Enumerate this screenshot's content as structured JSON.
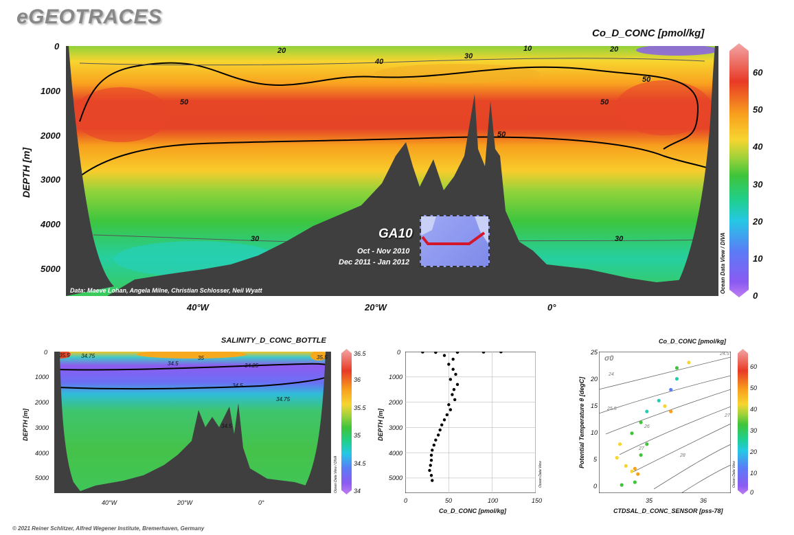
{
  "header": {
    "logo": "eGEOTRACES"
  },
  "footer": {
    "copyright": "© 2021 Reiner Schlitzer, Alfred Wegener Institute, Bremerhaven, Germany"
  },
  "main_section": {
    "title": "Co_D_CONC [pmol/kg]",
    "ylabel": "DEPTH [m]",
    "y_ticks": [
      "0",
      "1000",
      "2000",
      "3000",
      "4000",
      "5000"
    ],
    "x_ticks": [
      "40°W",
      "20°W",
      "0°"
    ],
    "colorbar_ticks": [
      "60",
      "50",
      "40",
      "30",
      "20",
      "10",
      "0"
    ],
    "contour_labels": [
      "20",
      "10",
      "40",
      "30",
      "50",
      "50",
      "50",
      "50",
      "30",
      "30"
    ],
    "credit": "Data: Maeve Lohan, Angela Milne, Christian Schlosser, Neil Wyatt",
    "side_label": "Ocean Data View / DIVA",
    "cruise": {
      "name": "GA10",
      "dates_1": "Oct - Nov 2010",
      "dates_2": "Dec 2011 - Jan 2012"
    }
  },
  "salinity_section": {
    "title": "SALINITY_D_CONC_BOTTLE",
    "ylabel": "DEPTH [m]",
    "y_ticks": [
      "0",
      "1000",
      "2000",
      "3000",
      "4000",
      "5000"
    ],
    "x_ticks": [
      "40°W",
      "20°W",
      "0°"
    ],
    "colorbar_ticks": [
      "36.5",
      "36",
      "35.5",
      "35",
      "34.5",
      "34"
    ],
    "contour_labels": [
      "34.75",
      "34.5",
      "35",
      "34.25",
      "34.5",
      "34.75",
      "34.5",
      "35.5",
      "35.5"
    ],
    "side_label": "Ocean Data View / DIVA"
  },
  "profile_plot": {
    "xlabel": "Co_D_CONC [pmol/kg]",
    "ylabel": "DEPTH [m]",
    "x_ticks": [
      "0",
      "50",
      "100",
      "150"
    ],
    "y_ticks": [
      "0",
      "1000",
      "2000",
      "3000",
      "4000",
      "5000"
    ],
    "side_label": "Ocean Data View"
  },
  "ts_plot": {
    "title": "Co_D_CONC [pmol/kg]",
    "xlabel": "CTDSAL_D_CONC_SENSOR [pss-78]",
    "ylabel": "Potential Temperature θ [degC]",
    "x_ticks": [
      "35",
      "36"
    ],
    "y_ticks": [
      "25",
      "20",
      "15",
      "10",
      "5",
      "0"
    ],
    "colorbar_ticks": [
      "60",
      "50",
      "40",
      "30",
      "20",
      "10",
      "0"
    ],
    "isopycnal_labels": [
      "24",
      "25.5",
      "26",
      "27",
      "28",
      "24.5",
      "27"
    ],
    "sigma_label": "σ0",
    "side_label": "Ocean Data View"
  },
  "chart_data": [
    {
      "type": "heatmap",
      "title": "Co_D_CONC [pmol/kg]",
      "variable": "Co_D_CONC",
      "units": "pmol/kg",
      "ylabel": "DEPTH [m]",
      "xlim": [
        -55,
        17
      ],
      "ylim": [
        5600,
        0
      ],
      "color_range": [
        0,
        66
      ],
      "contour_levels": [
        10,
        20,
        30,
        40,
        50
      ],
      "colormap": [
        "#a657f4",
        "#5a7cf6",
        "#1fcfb0",
        "#3fc43a",
        "#9fd23a",
        "#f7d530",
        "#f8a01e",
        "#e83a26",
        "#f2a6a6"
      ],
      "bathymetry_depth_m": [
        {
          "lon": -52,
          "depth": 1200
        },
        {
          "lon": -49,
          "depth": 4800
        },
        {
          "lon": -45,
          "depth": 5300
        },
        {
          "lon": -35,
          "depth": 5200
        },
        {
          "lon": -25,
          "depth": 4400
        },
        {
          "lon": -20,
          "depth": 3600
        },
        {
          "lon": -17,
          "depth": 2200
        },
        {
          "lon": -13,
          "depth": 2800
        },
        {
          "lon": -8,
          "depth": 1300
        },
        {
          "lon": -4,
          "depth": 4000
        },
        {
          "lon": 0,
          "depth": 4900
        },
        {
          "lon": 10,
          "depth": 5000
        },
        {
          "lon": 15,
          "depth": 100
        }
      ]
    },
    {
      "type": "heatmap",
      "title": "SALINITY_D_CONC_BOTTLE",
      "variable": "SALINITY_D_CONC_BOTTLE",
      "ylabel": "DEPTH [m]",
      "xlim": [
        -55,
        17
      ],
      "ylim": [
        5600,
        0
      ],
      "color_range": [
        34,
        36.5
      ],
      "contour_levels": [
        34.25,
        34.5,
        34.75,
        35,
        35.5
      ]
    },
    {
      "type": "scatter",
      "xlabel": "Co_D_CONC [pmol/kg]",
      "ylabel": "DEPTH [m]",
      "xlim": [
        0,
        150
      ],
      "ylim": [
        5600,
        0
      ],
      "points": [
        {
          "x": 20,
          "y": 15
        },
        {
          "x": 35,
          "y": 30
        },
        {
          "x": 60,
          "y": 25
        },
        {
          "x": 90,
          "y": 20
        },
        {
          "x": 110,
          "y": 10
        },
        {
          "x": 45,
          "y": 150
        },
        {
          "x": 55,
          "y": 300
        },
        {
          "x": 50,
          "y": 500
        },
        {
          "x": 55,
          "y": 700
        },
        {
          "x": 58,
          "y": 900
        },
        {
          "x": 52,
          "y": 1100
        },
        {
          "x": 60,
          "y": 1300
        },
        {
          "x": 56,
          "y": 1500
        },
        {
          "x": 54,
          "y": 1700
        },
        {
          "x": 57,
          "y": 1900
        },
        {
          "x": 50,
          "y": 2100
        },
        {
          "x": 52,
          "y": 2300
        },
        {
          "x": 48,
          "y": 2500
        },
        {
          "x": 45,
          "y": 2700
        },
        {
          "x": 42,
          "y": 2900
        },
        {
          "x": 40,
          "y": 3100
        },
        {
          "x": 38,
          "y": 3300
        },
        {
          "x": 35,
          "y": 3500
        },
        {
          "x": 33,
          "y": 3700
        },
        {
          "x": 31,
          "y": 3900
        },
        {
          "x": 30,
          "y": 4100
        },
        {
          "x": 30,
          "y": 4300
        },
        {
          "x": 29,
          "y": 4500
        },
        {
          "x": 28,
          "y": 4700
        },
        {
          "x": 30,
          "y": 4900
        },
        {
          "x": 31,
          "y": 5100
        }
      ]
    },
    {
      "type": "scatter",
      "title": "Co_D_CONC [pmol/kg]",
      "xlabel": "CTDSAL_D_CONC_SENSOR [pss-78]",
      "ylabel": "Potential Temperature θ [degC]",
      "xlim": [
        34.3,
        36.5
      ],
      "ylim": [
        -1,
        25
      ],
      "color_variable": "Co_D_CONC",
      "color_range": [
        0,
        66
      ],
      "points": [
        {
          "x": 34.75,
          "y": 4,
          "c": 40
        },
        {
          "x": 34.85,
          "y": 3,
          "c": 45
        },
        {
          "x": 34.95,
          "y": 2.5,
          "c": 50
        },
        {
          "x": 34.9,
          "y": 3.5,
          "c": 52
        },
        {
          "x": 34.9,
          "y": 1,
          "c": 35
        },
        {
          "x": 34.68,
          "y": 0.5,
          "c": 30
        },
        {
          "x": 34.6,
          "y": 5.5,
          "c": 45
        },
        {
          "x": 34.65,
          "y": 8,
          "c": 40
        },
        {
          "x": 34.85,
          "y": 10,
          "c": 35
        },
        {
          "x": 35.0,
          "y": 12,
          "c": 30
        },
        {
          "x": 35.1,
          "y": 14,
          "c": 25
        },
        {
          "x": 35.3,
          "y": 16,
          "c": 20
        },
        {
          "x": 35.5,
          "y": 18,
          "c": 15
        },
        {
          "x": 35.6,
          "y": 20,
          "c": 25
        },
        {
          "x": 35.6,
          "y": 22,
          "c": 30
        },
        {
          "x": 35.8,
          "y": 23,
          "c": 40
        },
        {
          "x": 35.4,
          "y": 15,
          "c": 45
        },
        {
          "x": 35.5,
          "y": 14,
          "c": 55
        },
        {
          "x": 35.1,
          "y": 8,
          "c": 35
        },
        {
          "x": 35.0,
          "y": 6,
          "c": 30
        }
      ]
    }
  ]
}
